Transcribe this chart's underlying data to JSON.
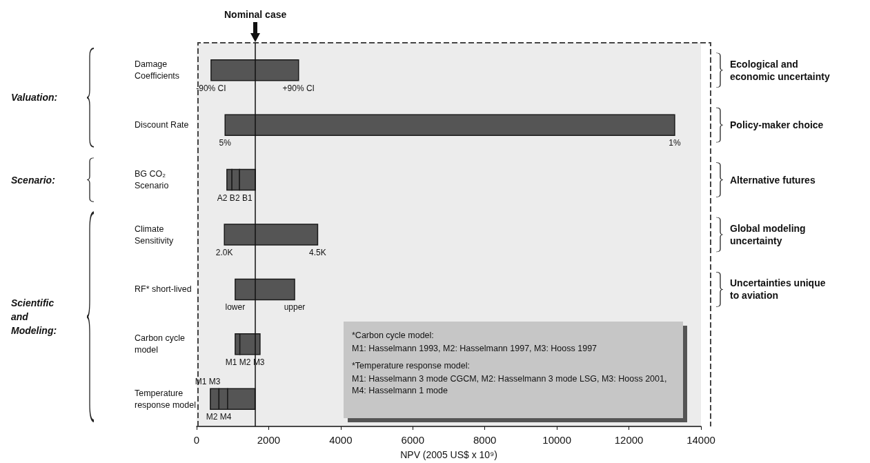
{
  "chart_data": {
    "type": "bar",
    "orientation": "horizontal",
    "xlabel": "NPV (2005 US$ x 10⁹)",
    "categories": [
      "Damage Coefficients",
      "Discount Rate",
      "BG CO₂ Scenario",
      "Climate Sensitivity",
      "RF* short-lived",
      "Carbon cycle model",
      "Temperature response model"
    ],
    "series": [
      {
        "color": "#555555",
        "base": [
          400,
          790,
          840,
          770,
          1070,
          1070,
          380
        ],
        "values": [
          2430,
          12480,
          140,
          2590,
          1650,
          130,
          240
        ]
      },
      {
        "color": "#555555",
        "base": [
          null,
          null,
          980,
          null,
          null,
          1200,
          620
        ],
        "values": [
          null,
          null,
          210,
          null,
          null,
          560,
          240
        ]
      },
      {
        "color": "#555555",
        "base": [
          null,
          null,
          1190,
          null,
          null,
          null,
          860
        ],
        "values": [
          null,
          null,
          440,
          null,
          null,
          null,
          760
        ]
      }
    ],
    "xlim": [
      0,
      14000
    ],
    "xticks": [
      0,
      2000,
      4000,
      6000,
      8000,
      10000,
      12000,
      14000
    ],
    "ref_lines": [
      {
        "axis": "x",
        "value": 1630,
        "label": "Nominal case",
        "color": "#111111"
      }
    ],
    "annotations": [
      "Valuation:",
      "Scenario:",
      "Scientific and Modeling:",
      "Ecological and economic uncertainty",
      "Policy-maker choice",
      "Alternative futures",
      "Global modeling uncertainty",
      "Uncertainties unique to aviation",
      "*Carbon cycle model:",
      "M1: Hasselmann 1993, M2: Hasselmann 1997, M3: Hooss 1997",
      "*Temperature response model:",
      "M1: Hasselmann 3 mode CGCM, M2: Hasselmann 3 mode LSG, M3: Hooss 2001, M4: Hasselmann 1 mode",
      "A2 B2 B1",
      "M1 M2 M3",
      "M1 M3",
      "M2 M4",
      {
        "text": "-90% CI",
        "x": 400,
        "y": "Damage Coefficients"
      },
      {
        "text": "+90% CI",
        "x": 2830,
        "y": "Damage Coefficients"
      },
      {
        "text": "5%",
        "x": 790,
        "y": "Discount Rate"
      },
      {
        "text": "1%",
        "x": 13270,
        "y": "Discount Rate"
      },
      {
        "text": "2.0K",
        "x": 770,
        "y": "Climate Sensitivity"
      },
      {
        "text": "4.5K",
        "x": 3360,
        "y": "Climate Sensitivity"
      },
      {
        "text": "lower",
        "x": 1070,
        "y": "RF* short-lived"
      },
      {
        "text": "upper",
        "x": 2720,
        "y": "RF* short-lived"
      }
    ]
  }
}
